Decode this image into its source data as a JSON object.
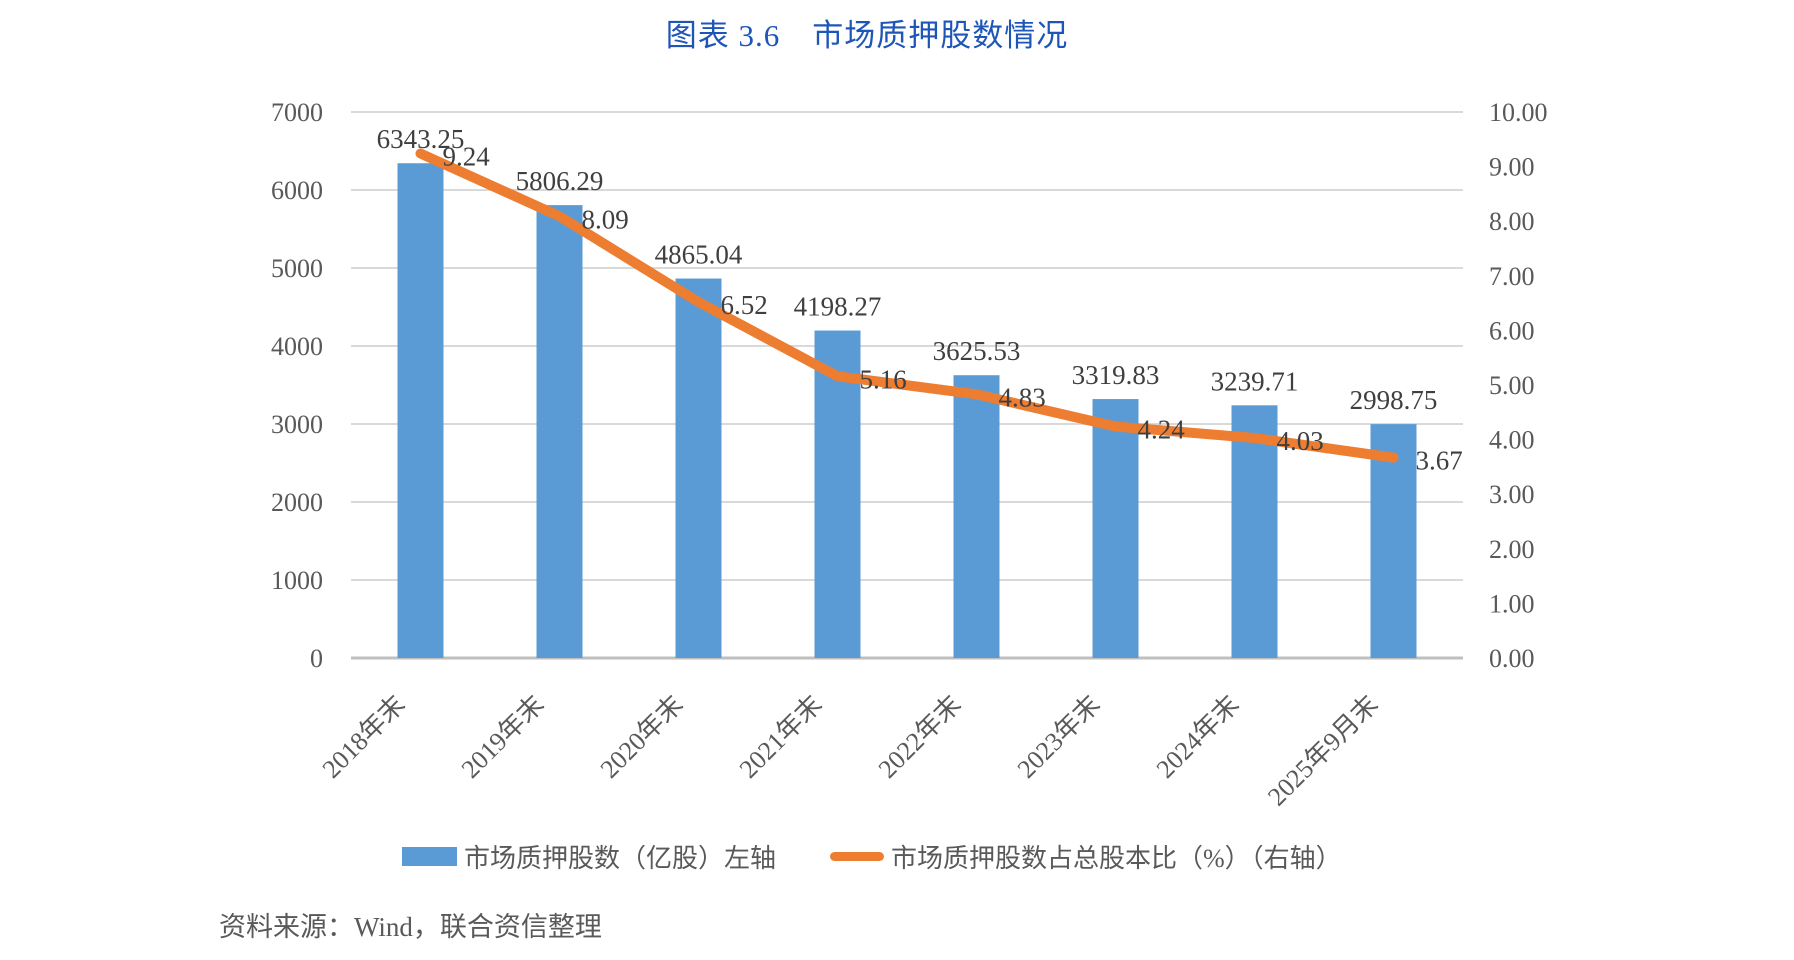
{
  "title": "图表 3.6　市场质押股数情况",
  "source_note": "资料来源：Wind，联合资信整理",
  "colors": {
    "bar": "#5B9BD5",
    "line": "#ED7D31",
    "title_text": "#1E56B8",
    "axis_text": "#595959",
    "data_label": "#3F3F3F",
    "gridline": "#D9D9D9",
    "baseline": "#BFBFBF"
  },
  "legend": [
    {
      "label": "市场质押股数（亿股）左轴",
      "type": "bar"
    },
    {
      "label": "市场质押股数占总股本比（%）（右轴）",
      "type": "line"
    }
  ],
  "chart_data": {
    "type": "bar+line combo",
    "title": "图表 3.6　市场质押股数情况",
    "categories": [
      "2018年末",
      "2019年末",
      "2020年末",
      "2021年末",
      "2022年末",
      "2023年末",
      "2024年末",
      "2025年9月末"
    ],
    "series": [
      {
        "name": "市场质押股数（亿股）左轴",
        "type": "bar",
        "axis": "left",
        "values": [
          6343.25,
          5806.29,
          4865.04,
          4198.27,
          3625.53,
          3319.83,
          3239.71,
          2998.75
        ]
      },
      {
        "name": "市场质押股数占总股本比（%）（右轴）",
        "type": "line",
        "axis": "right",
        "values": [
          9.24,
          8.09,
          6.52,
          5.16,
          4.83,
          4.24,
          4.03,
          3.67
        ]
      }
    ],
    "left_axis": {
      "min": 0,
      "max": 7000,
      "step": 1000,
      "tick_labels": [
        "7000",
        "6000",
        "5000",
        "4000",
        "3000",
        "2000",
        "1000",
        "0"
      ]
    },
    "right_axis": {
      "min": 0,
      "max": 10,
      "step": 1,
      "tick_labels": [
        "10.00",
        "9.00",
        "8.00",
        "7.00",
        "6.00",
        "5.00",
        "4.00",
        "3.00",
        "2.00",
        "1.00",
        "0.00"
      ]
    },
    "grid": true,
    "legend_position": "bottom"
  }
}
